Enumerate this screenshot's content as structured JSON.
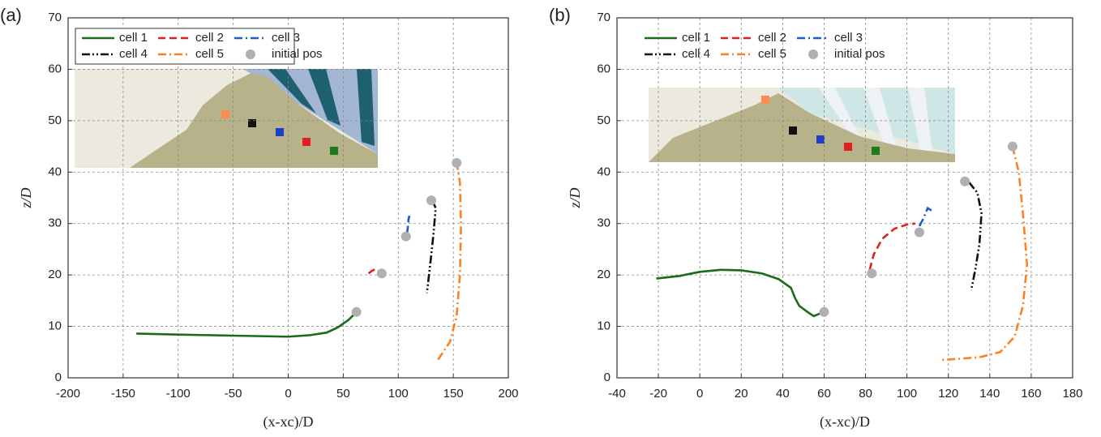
{
  "chart_data": [
    {
      "type": "line",
      "panel_label": "(a)",
      "xlabel": "(x-xc)/D",
      "ylabel": "z/D",
      "xlim": [
        -200,
        200
      ],
      "ylim": [
        0,
        70
      ],
      "xticks": [
        -200,
        -150,
        -100,
        -50,
        0,
        50,
        100,
        150,
        200
      ],
      "yticks": [
        0,
        10,
        20,
        30,
        40,
        50,
        60,
        70
      ],
      "grid": true,
      "legend": "upper left",
      "legend_frame": true,
      "series": [
        {
          "name": "cell 1",
          "color": "#1b6b1b",
          "dash": "solid",
          "x": [
            -138,
            -100,
            -50,
            0,
            20,
            35,
            45,
            55,
            62
          ],
          "values": [
            8.6,
            8.4,
            8.2,
            8.0,
            8.3,
            8.8,
            9.8,
            11.3,
            12.8
          ]
        },
        {
          "name": "cell 2",
          "color": "#e02020",
          "dash": "dash",
          "x": [
            73,
            76,
            80,
            83
          ],
          "values": [
            20.3,
            20.8,
            21.2,
            20.6
          ]
        },
        {
          "name": "cell 3",
          "color": "#1a5fc8",
          "dash": "dashdot",
          "x": [
            108,
            109,
            110,
            109
          ],
          "values": [
            28,
            30,
            31.5,
            30.5
          ]
        },
        {
          "name": "cell 4",
          "color": "#111111",
          "dash": "dashdotdot",
          "x": [
            131,
            134,
            132,
            129,
            126
          ],
          "values": [
            34.5,
            33,
            28,
            22,
            16.5
          ]
        },
        {
          "name": "cell 5",
          "color": "#ff7f1e",
          "dash": "dashdot",
          "x": [
            153,
            156,
            157,
            156,
            153,
            147,
            136
          ],
          "values": [
            42,
            38,
            30,
            20,
            12,
            7,
            3.5
          ]
        },
        {
          "name": "initial pos",
          "type": "scatter",
          "color": "#b0b0b0",
          "x": [
            62,
            85,
            107,
            130,
            153
          ],
          "values": [
            12.8,
            20.3,
            27.5,
            34.5,
            41.8
          ]
        }
      ]
    },
    {
      "type": "line",
      "panel_label": "(b)",
      "xlabel": "(x-xc)/D",
      "ylabel": "z/D",
      "xlim": [
        -40,
        180
      ],
      "ylim": [
        0,
        70
      ],
      "xticks": [
        -40,
        -20,
        0,
        20,
        40,
        60,
        80,
        100,
        120,
        140,
        160,
        180
      ],
      "yticks": [
        0,
        10,
        20,
        30,
        40,
        50,
        60,
        70
      ],
      "grid": true,
      "legend": "upper left",
      "legend_frame": false,
      "series": [
        {
          "name": "cell 1",
          "color": "#1b6b1b",
          "dash": "solid",
          "x": [
            -21,
            -10,
            0,
            10,
            20,
            30,
            38,
            44,
            46,
            48,
            52,
            55,
            58
          ],
          "values": [
            19.3,
            19.8,
            20.6,
            21,
            20.9,
            20.3,
            19.2,
            17.5,
            15.5,
            14,
            12.8,
            12,
            12.5
          ]
        },
        {
          "name": "cell 2",
          "color": "#e02020",
          "dash": "dash",
          "x": [
            82,
            84,
            88,
            94,
            100,
            104
          ],
          "values": [
            21,
            24,
            27,
            29,
            29.8,
            30
          ]
        },
        {
          "name": "cell 3",
          "color": "#1a5fc8",
          "dash": "dashdot",
          "x": [
            106,
            108,
            110,
            112
          ],
          "values": [
            29.5,
            31,
            33,
            32.5
          ]
        },
        {
          "name": "cell 4",
          "color": "#111111",
          "dash": "dashdotdot",
          "x": [
            130,
            134,
            136,
            135,
            133,
            131
          ],
          "values": [
            38,
            36,
            32,
            26,
            21,
            17
          ]
        },
        {
          "name": "cell 5",
          "color": "#ff7f1e",
          "dash": "dashdot",
          "x": [
            151,
            154,
            156,
            158,
            156,
            152,
            145,
            135,
            125,
            117
          ],
          "values": [
            45,
            40,
            32,
            22,
            14,
            8,
            5,
            4,
            3.7,
            3.5
          ]
        },
        {
          "name": "initial pos",
          "type": "scatter",
          "color": "#b0b0b0",
          "x": [
            60,
            83,
            106,
            128,
            151
          ],
          "values": [
            12.8,
            20.3,
            28.3,
            38.2,
            45
          ]
        }
      ]
    }
  ]
}
